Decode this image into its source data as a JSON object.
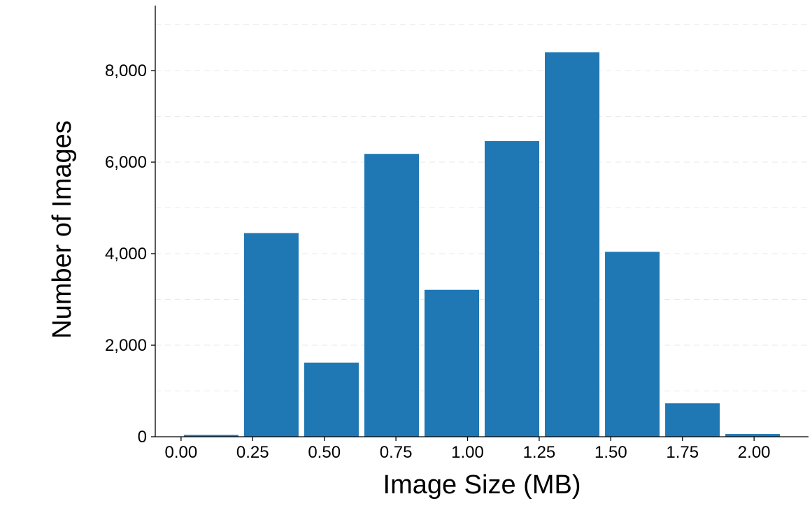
{
  "chart_data": {
    "type": "bar",
    "title": "",
    "xlabel": "Image Size (MB)",
    "ylabel": "Number of Images",
    "bin_edges": [
      0.0,
      0.21,
      0.42,
      0.63,
      0.84,
      1.05,
      1.26,
      1.47,
      1.68,
      1.89,
      2.1
    ],
    "values": [
      40,
      4450,
      1620,
      6180,
      3210,
      6460,
      8400,
      4040,
      730,
      60
    ],
    "xlim": [
      -0.09,
      2.19
    ],
    "ylim": [
      0,
      9420
    ],
    "x_ticks": [
      0.0,
      0.25,
      0.5,
      0.75,
      1.0,
      1.25,
      1.5,
      1.75,
      2.0
    ],
    "x_tick_labels": [
      "0.00",
      "0.25",
      "0.50",
      "0.75",
      "1.00",
      "1.25",
      "1.50",
      "1.75",
      "2.00"
    ],
    "y_ticks": [
      0,
      2000,
      4000,
      6000,
      8000
    ],
    "y_tick_labels": [
      "0",
      "2,000",
      "4,000",
      "6,000",
      "8,000"
    ],
    "y_gridlines": [
      1000,
      2000,
      3000,
      4000,
      5000,
      6000,
      7000,
      8000,
      9000
    ],
    "bar_color": "#1f77b4",
    "grid": "horizontal dashed, light",
    "legend": "none"
  }
}
